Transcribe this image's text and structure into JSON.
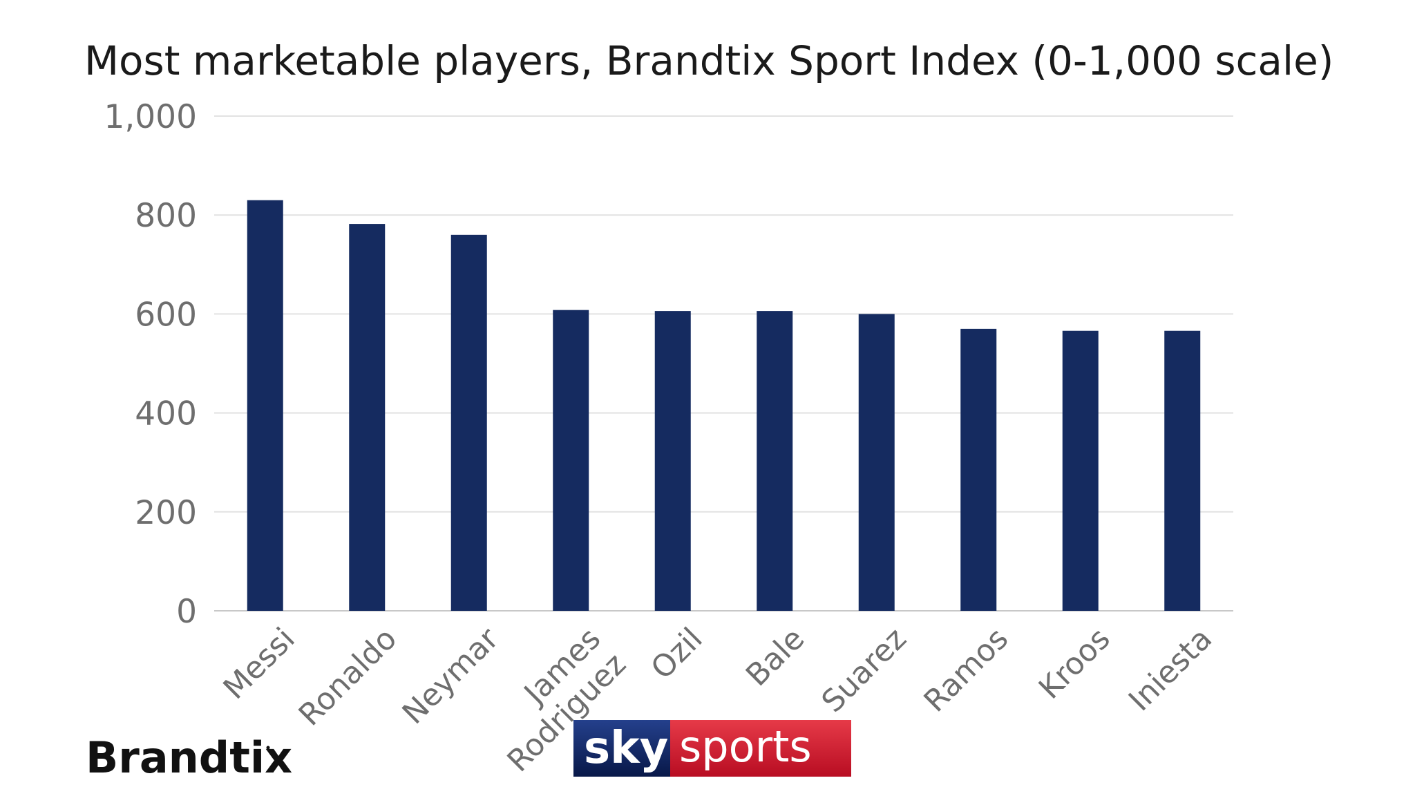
{
  "chart_data": {
    "type": "bar",
    "title": "Most marketable players, Brandtix Sport Index (0-1,000 scale)",
    "xlabel": "",
    "ylabel": "",
    "ylim": [
      0,
      1000
    ],
    "yticks": [
      0,
      200,
      400,
      600,
      800,
      1000
    ],
    "ytick_labels": [
      "0",
      "200",
      "400",
      "600",
      "800",
      "1,000"
    ],
    "grid": true,
    "categories": [
      "Messi",
      "Ronaldo",
      "Neymar",
      "James Rodriguez",
      "Ozil",
      "Bale",
      "Suarez",
      "Ramos",
      "Kroos",
      "Iniesta"
    ],
    "category_lines": [
      [
        "Messi"
      ],
      [
        "Ronaldo"
      ],
      [
        "Neymar"
      ],
      [
        "James",
        "Rodriguez"
      ],
      [
        "Ozil"
      ],
      [
        "Bale"
      ],
      [
        "Suarez"
      ],
      [
        "Ramos"
      ],
      [
        "Kroos"
      ],
      [
        "Iniesta"
      ]
    ],
    "values": [
      830,
      782,
      760,
      608,
      606,
      606,
      600,
      570,
      566,
      566
    ],
    "bar_color": "#152b60"
  },
  "logos": {
    "brandtix": "Brandtix",
    "sky": "sky",
    "sports": "sports",
    "sky_bg": "#0b1f57",
    "sports_bg": "#c8102e"
  }
}
